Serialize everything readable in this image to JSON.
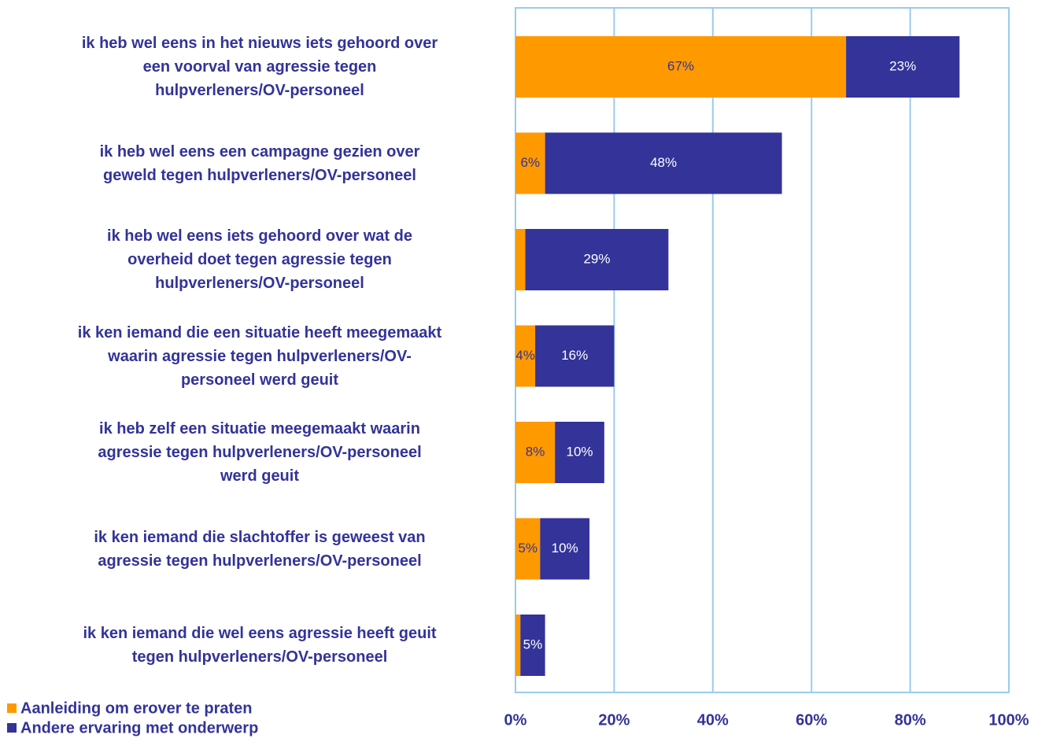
{
  "chart_data": {
    "type": "stacked_barh",
    "categories": [
      "ik heb wel eens in het nieuws iets gehoord over\neen voorval van agressie tegen\nhulpverleners/OV-personeel",
      "ik heb wel eens een campagne gezien over\ngeweld tegen hulpverleners/OV-personeel",
      "ik heb wel eens iets gehoord over wat de\noverheid doet tegen agressie tegen\nhulpverleners/OV-personeel",
      "ik ken iemand die een situatie heeft meegemaakt\nwaarin agressie tegen hulpverleners/OV-\npersoneel werd geuit",
      "ik heb zelf een situatie meegemaakt waarin\nagressie tegen hulpverleners/OV-personeel\nwerd geuit",
      "ik ken iemand die slachtoffer is geweest van\nagressie tegen hulpverleners/OV-personeel",
      "ik ken iemand die wel eens agressie heeft geuit\ntegen hulpverleners/OV-personeel"
    ],
    "series": [
      {
        "name": "Aanleiding om erover te praten",
        "color": "#ff9900",
        "label_color": "#333399",
        "values": [
          67,
          6,
          2,
          4,
          8,
          5,
          1
        ],
        "value_labels": [
          "67%",
          "6%",
          null,
          "4%",
          "8%",
          "5%",
          null
        ]
      },
      {
        "name": "Andere ervaring met onderwerp",
        "color": "#333399",
        "label_color": "#ffffff",
        "values": [
          23,
          48,
          29,
          16,
          10,
          10,
          5
        ],
        "value_labels": [
          "23%",
          "48%",
          "29%",
          "16%",
          "10%",
          "10%",
          "5%"
        ]
      }
    ],
    "xlim": [
      0,
      100
    ],
    "xticks": [
      {
        "value": 0,
        "label": "0%"
      },
      {
        "value": 20,
        "label": "20%"
      },
      {
        "value": 40,
        "label": "40%"
      },
      {
        "value": 60,
        "label": "60%"
      },
      {
        "value": 80,
        "label": "80%"
      },
      {
        "value": 100,
        "label": "100%"
      }
    ],
    "grid": true,
    "legend": "bottom-left"
  }
}
